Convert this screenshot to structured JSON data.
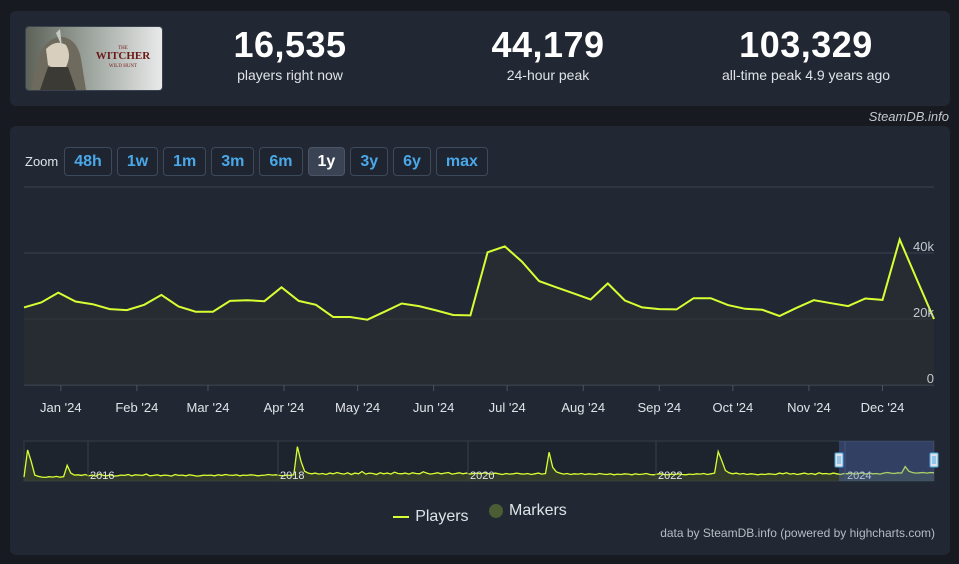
{
  "header": {
    "game_logo_alt": "THE WITCHER WILD HUNT",
    "stats": [
      {
        "value": "16,535",
        "label": "players right now"
      },
      {
        "value": "44,179",
        "label": "24-hour peak"
      },
      {
        "value": "103,329",
        "label": "all-time peak 4.9 years ago"
      }
    ],
    "source": "SteamDB.info"
  },
  "zoom": {
    "label": "Zoom",
    "buttons": [
      "48h",
      "1w",
      "1m",
      "3m",
      "6m",
      "1y",
      "3y",
      "6y",
      "max"
    ],
    "active": "1y"
  },
  "legend": {
    "players": "Players",
    "markers": "Markers"
  },
  "credits": "data by SteamDB.info (powered by highcharts.com)",
  "colors": {
    "line": "#d8ff33",
    "accent": "#4aa8e8",
    "markers": "#4a5d35",
    "background": "#222833"
  },
  "chart_data": [
    {
      "type": "line",
      "series": [
        {
          "name": "Players",
          "x": [
            "2023-12-17",
            "2023-12-24",
            "2023-12-31",
            "2024-01-07",
            "2024-01-14",
            "2024-01-21",
            "2024-01-28",
            "2024-02-04",
            "2024-02-11",
            "2024-02-18",
            "2024-02-25",
            "2024-03-03",
            "2024-03-10",
            "2024-03-17",
            "2024-03-24",
            "2024-03-31",
            "2024-04-07",
            "2024-04-14",
            "2024-04-21",
            "2024-04-28",
            "2024-05-05",
            "2024-05-12",
            "2024-05-19",
            "2024-05-26",
            "2024-06-02",
            "2024-06-09",
            "2024-06-16",
            "2024-06-23",
            "2024-06-30",
            "2024-07-07",
            "2024-07-14",
            "2024-07-21",
            "2024-07-28",
            "2024-08-04",
            "2024-08-11",
            "2024-08-18",
            "2024-08-25",
            "2024-09-01",
            "2024-09-08",
            "2024-09-15",
            "2024-09-22",
            "2024-09-29",
            "2024-10-06",
            "2024-10-13",
            "2024-10-20",
            "2024-10-27",
            "2024-11-03",
            "2024-11-10",
            "2024-11-17",
            "2024-11-24",
            "2024-12-01",
            "2024-12-08",
            "2024-12-15",
            "2024-12-22"
          ],
          "values": [
            23500,
            25000,
            28000,
            25300,
            24500,
            23000,
            22700,
            24300,
            27300,
            23800,
            22200,
            22200,
            25500,
            25700,
            25400,
            29600,
            25500,
            24300,
            20600,
            20600,
            19800,
            22200,
            24700,
            23900,
            22600,
            21200,
            21100,
            40200,
            42000,
            37400,
            31500,
            29600,
            27800,
            25900,
            30800,
            25600,
            23500,
            23000,
            22900,
            26300,
            26300,
            24200,
            23100,
            22800,
            20900,
            23400,
            25700,
            24800,
            23900,
            26200,
            25800,
            44100,
            32000,
            20000
          ]
        }
      ],
      "xlabels": [
        "Jan '24",
        "Feb '24",
        "Mar '24",
        "Apr '24",
        "May '24",
        "Jun '24",
        "Jul '24",
        "Aug '24",
        "Sep '24",
        "Oct '24",
        "Nov '24",
        "Dec '24"
      ],
      "ylabels": [
        "0",
        "20k",
        "40k"
      ],
      "ylim": [
        0,
        60000
      ],
      "grid": true
    },
    {
      "type": "area",
      "series": [
        {
          "name": "Players",
          "values": [
            12000,
            95000,
            60000,
            18000,
            14000,
            12000,
            11000,
            13000,
            12000,
            14000,
            11500,
            13000,
            48000,
            24000,
            18000,
            19000,
            17000,
            20000,
            16000,
            18000,
            15000,
            21000,
            17000,
            16000,
            19000,
            15000,
            16000,
            18000,
            17000,
            20000,
            16000,
            19000,
            18000,
            17000,
            21000,
            16000,
            17000,
            19000,
            16000,
            18000,
            17000,
            15000,
            20000,
            17000,
            18000,
            16000,
            19000,
            17000,
            15000,
            16000,
            18000,
            17000,
            18000,
            16000,
            19000,
            17000,
            20000,
            18000,
            17000,
            19000,
            16000,
            18000,
            17000,
            19000,
            18000,
            16000,
            17000,
            18000,
            20000,
            18000,
            19000,
            17000,
            16000,
            18000,
            17000,
            19000,
            105000,
            60000,
            30000,
            24000,
            22000,
            24000,
            21000,
            23000,
            20000,
            24000,
            22000,
            26000,
            23000,
            21000,
            25000,
            20000,
            24000,
            22000,
            29000,
            21000,
            24000,
            23000,
            20000,
            25000,
            22000,
            24000,
            21000,
            27000,
            23000,
            22000,
            24000,
            21000,
            25000,
            23000,
            22000,
            28000,
            24000,
            21000,
            23000,
            25000,
            22000,
            24000,
            26000,
            21000,
            23000,
            25000,
            22000,
            24000,
            21000,
            23000,
            24000,
            22000,
            25000,
            23000,
            21000,
            24000,
            22000,
            20000,
            23000,
            21000,
            22000,
            24000,
            22000,
            21000,
            23000,
            20000,
            22000,
            24000,
            21000,
            23000,
            88000,
            42000,
            28000,
            24000,
            21000,
            23000,
            20000,
            22000,
            21000,
            23000,
            20000,
            22000,
            21000,
            20000,
            23000,
            21000,
            20000,
            22000,
            19000,
            21000,
            20000,
            22000,
            21000,
            19000,
            22000,
            20000,
            21000,
            23000,
            20000,
            19000,
            21000,
            22000,
            20000,
            19000,
            21000,
            20000,
            22000,
            20000,
            19000,
            21000,
            20000,
            22000,
            21000,
            23000,
            20000,
            22000,
            24000,
            90000,
            62000,
            32000,
            25000,
            22000,
            24000,
            21000,
            23000,
            20000,
            22000,
            21000,
            19000,
            21000,
            20000,
            22000,
            21000,
            20000,
            24000,
            22000,
            25000,
            21000,
            23000,
            20000,
            22000,
            24000,
            21000,
            23000,
            20000,
            25000,
            22000,
            23000,
            21000,
            24000,
            22000,
            20000,
            23000,
            22000,
            24000,
            21000,
            23000,
            25000,
            21000,
            24000,
            22000,
            23000,
            21000,
            24000,
            26000,
            24000,
            23000,
            25000,
            24000,
            44000,
            30000,
            26000,
            24000,
            25000,
            26000,
            24000,
            26000,
            25000
          ]
        }
      ],
      "xlabels": [
        "2016",
        "2018",
        "2020",
        "2022",
        "2024"
      ],
      "selected_range": [
        "2023-12",
        "2024-12"
      ]
    }
  ]
}
